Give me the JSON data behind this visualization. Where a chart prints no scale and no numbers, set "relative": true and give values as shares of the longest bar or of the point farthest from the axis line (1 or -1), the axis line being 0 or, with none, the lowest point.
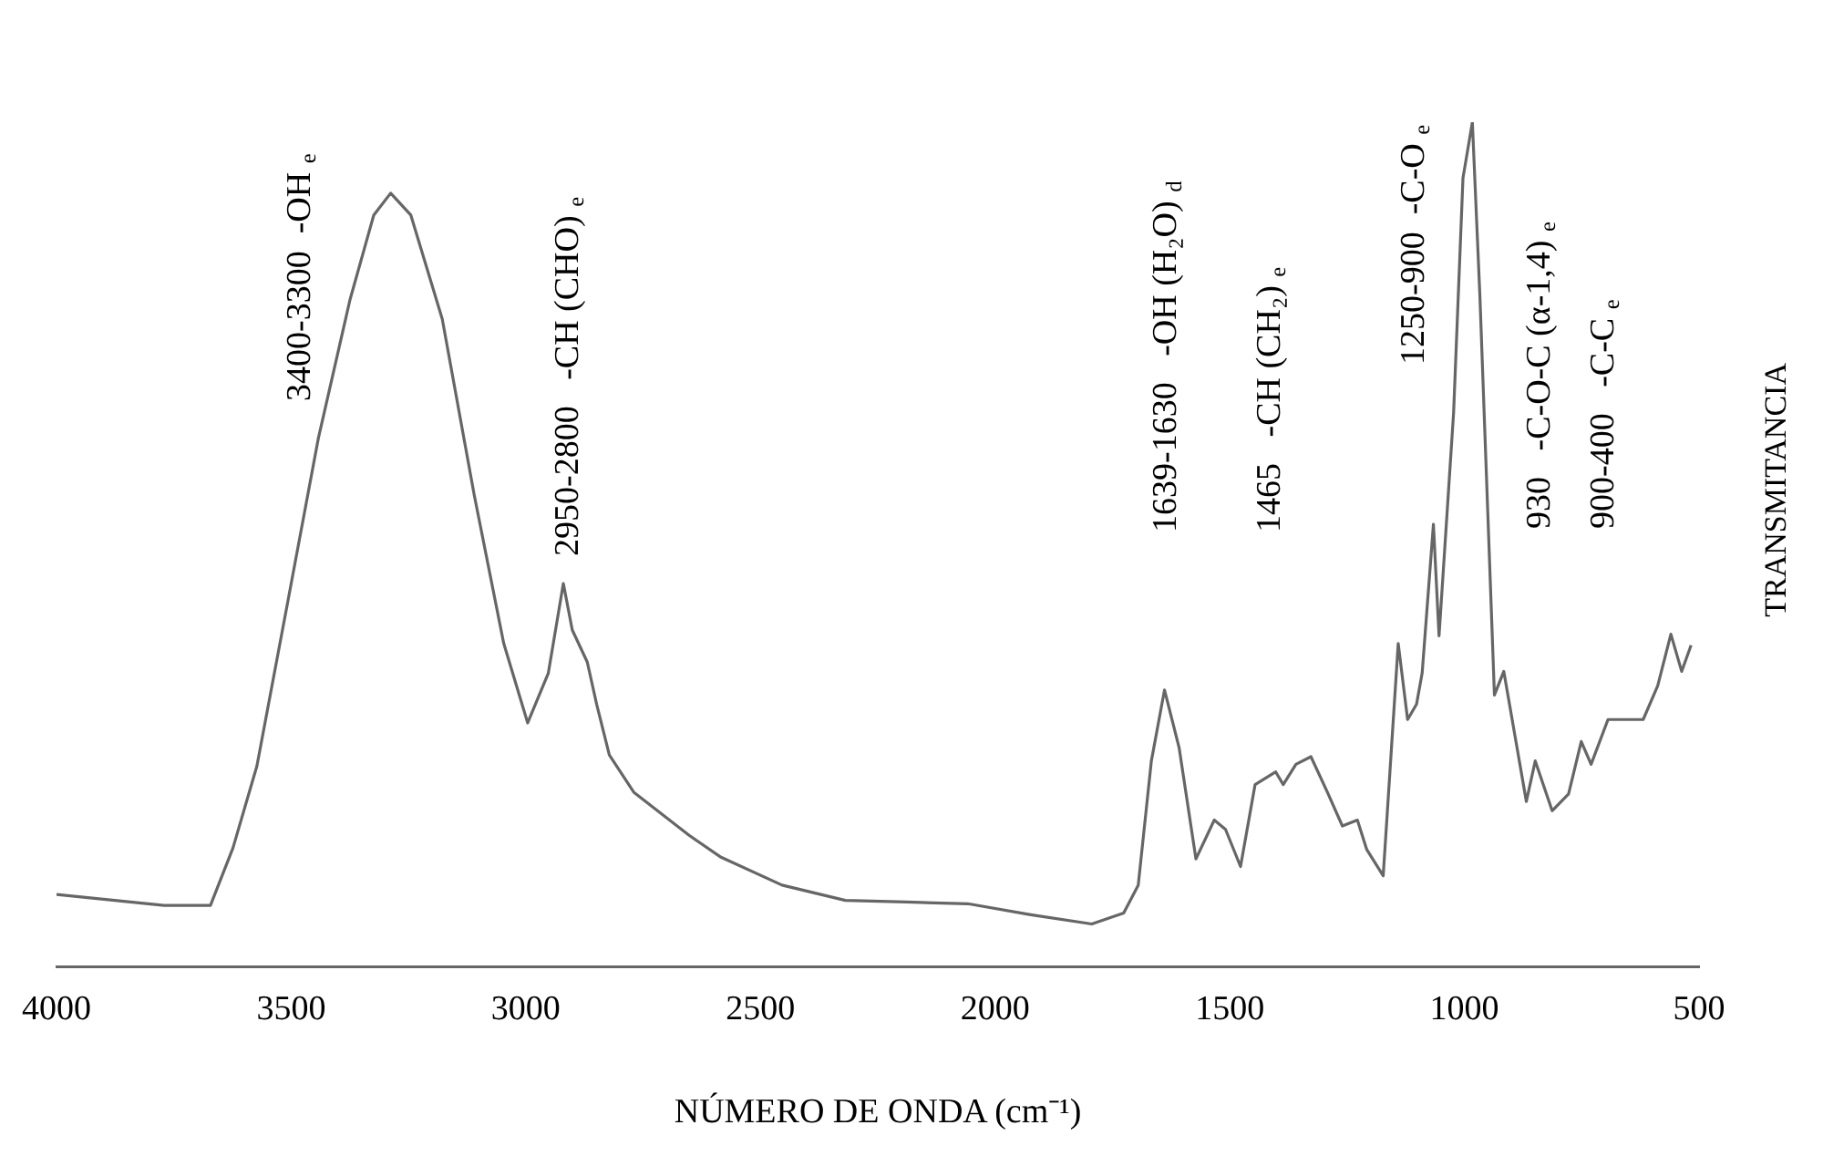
{
  "chart_data": {
    "type": "line",
    "relative": true,
    "xlabel": "NÚMERO DE ONDA (cm⁻¹)",
    "ylabel": "TRANSMITANCIA",
    "xlim": [
      4000,
      500
    ],
    "xticks": [
      4000,
      3500,
      3000,
      2500,
      2000,
      1500,
      1000,
      500
    ],
    "grid": false,
    "legend": false,
    "marker": "none",
    "line_style": "solid",
    "series": [
      {
        "color": "#666666",
        "x": [
          4000,
          3771,
          3672,
          3624,
          3573,
          3506,
          3442,
          3375,
          3324,
          3288,
          3245,
          3178,
          3110,
          3047,
          2996,
          2952,
          2920,
          2901,
          2869,
          2849,
          2822,
          2770,
          2652,
          2584,
          2454,
          2319,
          2189,
          2058,
          1924,
          1794,
          1726,
          1695,
          1667,
          1639,
          1608,
          1572,
          1533,
          1509,
          1477,
          1446,
          1402,
          1386,
          1359,
          1327,
          1292,
          1260,
          1228,
          1208,
          1173,
          1141,
          1121,
          1102,
          1090,
          1066,
          1054,
          1023,
          1003,
          983,
          967,
          936,
          916,
          892,
          868,
          849,
          813,
          778,
          751,
          730,
          694,
          619,
          588,
          560,
          537,
          517
        ],
        "values": [
          0.086,
          0.073,
          0.073,
          0.141,
          0.238,
          0.436,
          0.626,
          0.789,
          0.89,
          0.916,
          0.89,
          0.767,
          0.559,
          0.383,
          0.289,
          0.348,
          0.454,
          0.399,
          0.361,
          0.311,
          0.251,
          0.207,
          0.156,
          0.13,
          0.097,
          0.079,
          0.077,
          0.075,
          0.062,
          0.051,
          0.064,
          0.097,
          0.244,
          0.328,
          0.26,
          0.128,
          0.174,
          0.163,
          0.119,
          0.216,
          0.231,
          0.216,
          0.24,
          0.249,
          0.207,
          0.167,
          0.174,
          0.139,
          0.108,
          0.383,
          0.293,
          0.311,
          0.348,
          0.524,
          0.392,
          0.656,
          0.934,
          1.0,
          0.795,
          0.322,
          0.35,
          0.273,
          0.196,
          0.244,
          0.185,
          0.205,
          0.267,
          0.24,
          0.293,
          0.293,
          0.333,
          0.394,
          0.35,
          0.381
        ]
      }
    ],
    "annotations": [
      "3400-3300  -OH $_{e}$",
      "2950-2800   -CH (CHO) $_{e}$",
      "1639-1630   -OH (H₂O) $_{d}$",
      "1465   -CH (CH₂) $_{e}$",
      "1250-900  -C-O $_{e}$",
      "930   -C-O-C (α-1,4) $_{e}$",
      "900-400   -C-C $_{e}$"
    ]
  }
}
